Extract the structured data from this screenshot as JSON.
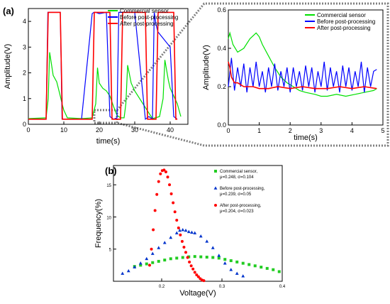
{
  "panels": {
    "a_label": "(a)",
    "b_label": "(b)"
  },
  "chart_data": [
    {
      "id": "a_main",
      "type": "line",
      "xlabel": "time(s)",
      "ylabel": "Amplitude(V)",
      "xlim": [
        0,
        45
      ],
      "ylim": [
        0,
        4.5
      ],
      "xticks": [
        0,
        10,
        20,
        30,
        40
      ],
      "yticks": [
        0,
        1,
        2,
        3,
        4
      ],
      "legend_position": "top-right",
      "legend": [
        "Commercial sensor",
        "Before post-processing",
        "After post-processing"
      ],
      "colors": [
        "#00e000",
        "#0000ff",
        "#ff0000"
      ],
      "series": [
        {
          "name": "Commercial sensor",
          "x": [
            0,
            5,
            5.6,
            6,
            7,
            8,
            9,
            9.5,
            10,
            11,
            15,
            18,
            19,
            19.5,
            20,
            20.5,
            21,
            22,
            23,
            24,
            25,
            26,
            27,
            27.5,
            28,
            29,
            30,
            35,
            37,
            38,
            38.5,
            39,
            39.5,
            40,
            42,
            43
          ],
          "y": [
            0.22,
            0.25,
            1.0,
            2.8,
            1.9,
            1.65,
            1.1,
            0.8,
            0.55,
            0.25,
            0.22,
            0.25,
            0.8,
            2.2,
            1.6,
            1.5,
            1.4,
            1.3,
            1.1,
            0.7,
            0.35,
            0.25,
            0.25,
            0.8,
            2.3,
            1.6,
            1.3,
            0.22,
            0.3,
            1.0,
            2.5,
            2.1,
            1.7,
            1.4,
            0.8,
            0.3
          ]
        },
        {
          "name": "Before post-processing",
          "x": [
            0,
            5,
            5.5,
            6,
            9,
            9.5,
            10,
            15,
            18,
            18.5,
            19,
            20,
            22,
            23,
            24,
            25,
            25.5,
            26,
            30,
            33,
            34,
            35,
            35.5,
            36,
            36.5,
            40,
            41,
            42
          ],
          "y": [
            0.2,
            0.2,
            4.35,
            4.35,
            4.35,
            0.2,
            0.2,
            0.2,
            4.3,
            4.35,
            4.35,
            4.3,
            4.35,
            0.3,
            0.2,
            0.25,
            4.35,
            4.35,
            4.35,
            0.2,
            0.3,
            0.2,
            4.35,
            3.9,
            3.6,
            3.0,
            0.3,
            0.2
          ]
        },
        {
          "name": "After post-processing",
          "x": [
            0,
            5,
            5.6,
            6,
            9,
            9.6,
            10,
            18,
            18.6,
            19,
            23,
            23.6,
            24,
            26,
            26.6,
            27,
            33,
            33.6,
            34,
            36,
            36.6,
            37,
            41,
            41.6,
            42
          ],
          "y": [
            0.2,
            0.2,
            4.35,
            4.35,
            4.35,
            0.2,
            0.2,
            0.2,
            4.35,
            4.35,
            4.35,
            0.2,
            0.2,
            0.2,
            4.35,
            4.35,
            4.35,
            0.2,
            0.2,
            0.2,
            4.35,
            4.35,
            4.35,
            0.2,
            0.2
          ]
        }
      ]
    },
    {
      "id": "a_zoom",
      "type": "line",
      "xlabel": "time(s)",
      "ylabel": "Amplitude(V)",
      "xlim": [
        0,
        5
      ],
      "ylim": [
        0,
        0.6
      ],
      "xticks": [
        0,
        1,
        2,
        3,
        4,
        5
      ],
      "yticks": [
        0.0,
        0.2,
        0.4,
        0.6
      ],
      "legend_position": "top-right",
      "legend": [
        "Commercial sensor",
        "Before post-processing",
        "After post-processing"
      ],
      "colors": [
        "#00e000",
        "#0000ff",
        "#ff0000"
      ],
      "series": [
        {
          "name": "Commercial sensor",
          "x": [
            0,
            0.05,
            0.15,
            0.3,
            0.5,
            0.7,
            0.9,
            1.0,
            1.1,
            1.3,
            1.5,
            1.7,
            1.9,
            2.1,
            2.3,
            2.5,
            2.8,
            3.0,
            3.2,
            3.5,
            3.8,
            4.1,
            4.4,
            4.7,
            4.8
          ],
          "y": [
            0.45,
            0.48,
            0.42,
            0.38,
            0.4,
            0.45,
            0.48,
            0.46,
            0.42,
            0.36,
            0.3,
            0.25,
            0.22,
            0.2,
            0.18,
            0.17,
            0.16,
            0.15,
            0.15,
            0.16,
            0.15,
            0.16,
            0.17,
            0.18,
            0.19
          ]
        },
        {
          "name": "Before post-processing",
          "x": [
            0,
            0.1,
            0.2,
            0.3,
            0.4,
            0.5,
            0.6,
            0.7,
            0.8,
            0.9,
            1.0,
            1.1,
            1.2,
            1.3,
            1.4,
            1.5,
            1.6,
            1.7,
            1.8,
            1.9,
            2.0,
            2.1,
            2.2,
            2.3,
            2.4,
            2.5,
            2.6,
            2.7,
            2.8,
            2.9,
            3.0,
            3.1,
            3.2,
            3.3,
            3.4,
            3.5,
            3.6,
            3.7,
            3.8,
            3.9,
            4.0,
            4.1,
            4.2,
            4.3,
            4.4,
            4.5,
            4.6,
            4.7,
            4.8
          ],
          "y": [
            0.2,
            0.35,
            0.18,
            0.3,
            0.2,
            0.32,
            0.17,
            0.3,
            0.2,
            0.33,
            0.2,
            0.28,
            0.17,
            0.3,
            0.2,
            0.32,
            0.18,
            0.28,
            0.2,
            0.3,
            0.17,
            0.3,
            0.2,
            0.28,
            0.18,
            0.31,
            0.2,
            0.3,
            0.17,
            0.28,
            0.2,
            0.33,
            0.18,
            0.3,
            0.2,
            0.28,
            0.17,
            0.31,
            0.2,
            0.3,
            0.18,
            0.28,
            0.2,
            0.33,
            0.17,
            0.3,
            0.2,
            0.28,
            0.29
          ]
        },
        {
          "name": "After post-processing",
          "x": [
            0,
            0.05,
            0.1,
            0.2,
            0.3,
            0.5,
            0.8,
            1.0,
            1.3,
            1.6,
            2.0,
            2.4,
            2.8,
            3.2,
            3.6,
            4.0,
            4.4,
            4.8
          ],
          "y": [
            0.33,
            0.3,
            0.25,
            0.22,
            0.22,
            0.2,
            0.2,
            0.19,
            0.19,
            0.2,
            0.19,
            0.2,
            0.19,
            0.19,
            0.2,
            0.19,
            0.2,
            0.19
          ]
        }
      ]
    },
    {
      "id": "b",
      "type": "scatter",
      "xlabel": "Voltage(V)",
      "ylabel": "Frequency(%)",
      "xlim": [
        0.12,
        0.4
      ],
      "ylim": [
        0,
        18
      ],
      "xticks": [
        0.2,
        0.3,
        0.4
      ],
      "xtick_labels": [
        "0.2",
        "0.3",
        "0.4"
      ],
      "yticks": [
        5,
        10,
        15
      ],
      "legend_position": "top-right",
      "colors": [
        "#22cc22",
        "#0033cc",
        "#ff0000"
      ],
      "series": [
        {
          "name": "Commercial sensor,",
          "stats": "μ=0.248, σ=0.104",
          "marker": "square",
          "x": [
            0.155,
            0.165,
            0.175,
            0.185,
            0.195,
            0.205,
            0.215,
            0.225,
            0.235,
            0.245,
            0.255,
            0.265,
            0.275,
            0.285,
            0.295,
            0.305,
            0.315,
            0.325,
            0.335,
            0.345,
            0.355,
            0.365,
            0.375,
            0.385,
            0.395
          ],
          "y": [
            2.3,
            2.5,
            2.7,
            2.9,
            3.1,
            3.3,
            3.5,
            3.6,
            3.7,
            3.8,
            3.85,
            3.8,
            3.75,
            3.7,
            3.6,
            3.4,
            3.2,
            3.0,
            2.8,
            2.6,
            2.4,
            2.2,
            2.0,
            1.8,
            1.5
          ]
        },
        {
          "name": "Before post-processing,",
          "stats": "μ=0.239, σ=0.05",
          "marker": "triangle",
          "x": [
            0.135,
            0.145,
            0.155,
            0.165,
            0.175,
            0.185,
            0.195,
            0.205,
            0.215,
            0.225,
            0.23,
            0.235,
            0.24,
            0.245,
            0.25,
            0.255,
            0.265,
            0.275,
            0.285,
            0.295,
            0.305,
            0.315,
            0.325,
            0.335
          ],
          "y": [
            1.2,
            1.6,
            2.2,
            2.8,
            3.5,
            4.3,
            5.2,
            6.0,
            6.8,
            7.5,
            7.9,
            8.0,
            7.9,
            7.7,
            7.6,
            7.5,
            7.0,
            6.2,
            5.2,
            4.0,
            2.8,
            1.8,
            1.2,
            0.8
          ]
        },
        {
          "name": "After post-processing,",
          "stats": "μ=0.204, σ=0.023",
          "marker": "circle",
          "x": [
            0.18,
            0.183,
            0.186,
            0.189,
            0.192,
            0.195,
            0.198,
            0.201,
            0.204,
            0.207,
            0.21,
            0.213,
            0.216,
            0.219,
            0.222,
            0.225,
            0.228,
            0.231,
            0.234,
            0.237,
            0.24,
            0.243,
            0.246,
            0.249,
            0.252,
            0.255,
            0.258,
            0.261,
            0.264,
            0.267,
            0.27
          ],
          "y": [
            2.5,
            5.0,
            8.0,
            11.0,
            13.5,
            15.5,
            16.7,
            17.2,
            17.3,
            17.0,
            16.2,
            15.0,
            13.6,
            12.2,
            10.8,
            9.5,
            8.3,
            7.2,
            6.2,
            5.3,
            4.5,
            3.7,
            3.0,
            2.4,
            1.9,
            1.4,
            1.0,
            0.7,
            0.4,
            0.2,
            0.1
          ]
        }
      ]
    }
  ]
}
